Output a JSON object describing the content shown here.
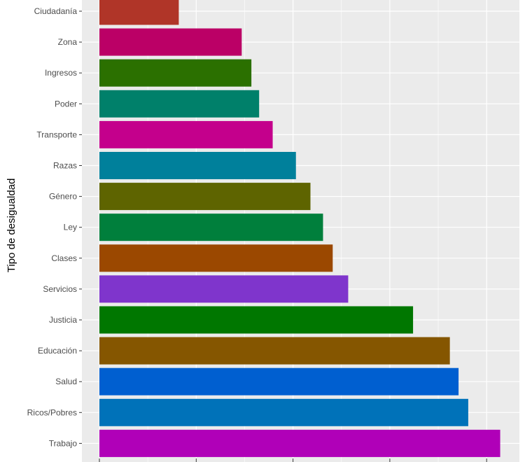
{
  "chart_data": {
    "type": "bar",
    "orientation": "horizontal",
    "title": "",
    "xlabel": "",
    "ylabel": "Tipo de desigualdad",
    "xlim": [
      0,
      4.4
    ],
    "grid": true,
    "legend": "none",
    "background": "#ebebeb",
    "gridline_color": "#ffffff",
    "categories": [
      "Ciudadanía",
      "Zona",
      "Ingresos",
      "Poder",
      "Transporte",
      "Razas",
      "Género",
      "Ley",
      "Clases",
      "Servicios",
      "Justicia",
      "Educación",
      "Salud",
      "Ricos/Pobres",
      "Trabajo"
    ],
    "values": [
      0.82,
      1.47,
      1.57,
      1.65,
      1.79,
      2.03,
      2.18,
      2.31,
      2.41,
      2.57,
      3.24,
      3.62,
      3.71,
      3.81,
      4.14
    ],
    "colors": [
      "#b03528",
      "#bb0066",
      "#2b7000",
      "#00806a",
      "#c4008c",
      "#00809b",
      "#5e6400",
      "#007f3c",
      "#9b4800",
      "#7f35cc",
      "#007700",
      "#855600",
      "#005fd0",
      "#0072b9",
      "#b000b8"
    ]
  }
}
